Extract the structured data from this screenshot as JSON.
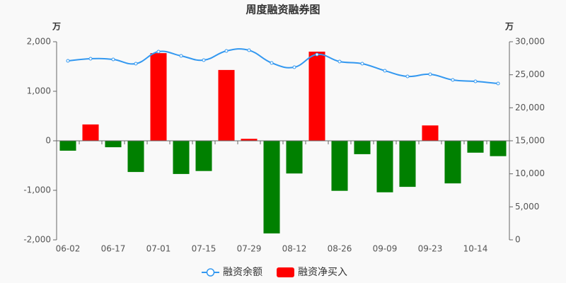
{
  "chart_data": {
    "type": "bar_line",
    "title": "周度融资融券图",
    "y_unit": "万",
    "y2_unit": "万",
    "categories": [
      "06-02",
      null,
      "06-17",
      null,
      "07-01",
      null,
      "07-15",
      null,
      "07-29",
      null,
      "08-12",
      null,
      "08-26",
      null,
      "09-09",
      null,
      "09-23",
      null,
      "10-14",
      null
    ],
    "series": [
      {
        "name": "融资余额",
        "type": "line",
        "axis": "y2",
        "color": "#3398f0",
        "values": [
          27110,
          27430,
          27320,
          26680,
          28500,
          27860,
          27210,
          28610,
          28710,
          26790,
          26140,
          28070,
          27000,
          26680,
          25610,
          24750,
          25070,
          24210,
          24000,
          23680
        ]
      },
      {
        "name": "融资净买入",
        "type": "bar",
        "axis": "y",
        "color": "#ff0000",
        "negative_color": "#008000",
        "values": [
          -200,
          330,
          -130,
          -630,
          1770,
          -670,
          -610,
          1430,
          40,
          -1870,
          -660,
          1800,
          -1010,
          -270,
          -1040,
          -930,
          310,
          -860,
          -240,
          -310
        ]
      }
    ],
    "ylim": [
      -2000,
      2000
    ],
    "yticks": [
      {
        "value": -2000,
        "label": "-2,000"
      },
      {
        "value": -1000,
        "label": "-1,000"
      },
      0,
      {
        "value": 1000,
        "label": "1,000"
      },
      {
        "value": 2000,
        "label": "2,000"
      }
    ],
    "y2lim": [
      0,
      30000
    ],
    "y2ticks": [
      0,
      {
        "value": 5000,
        "label": "5,000"
      },
      {
        "value": 10000,
        "label": "10,000"
      },
      {
        "value": 15000,
        "label": "15,000"
      },
      {
        "value": 20000,
        "label": "20,000"
      },
      {
        "value": 25000,
        "label": "25,000"
      },
      {
        "value": 30000,
        "label": "30,000"
      }
    ]
  }
}
